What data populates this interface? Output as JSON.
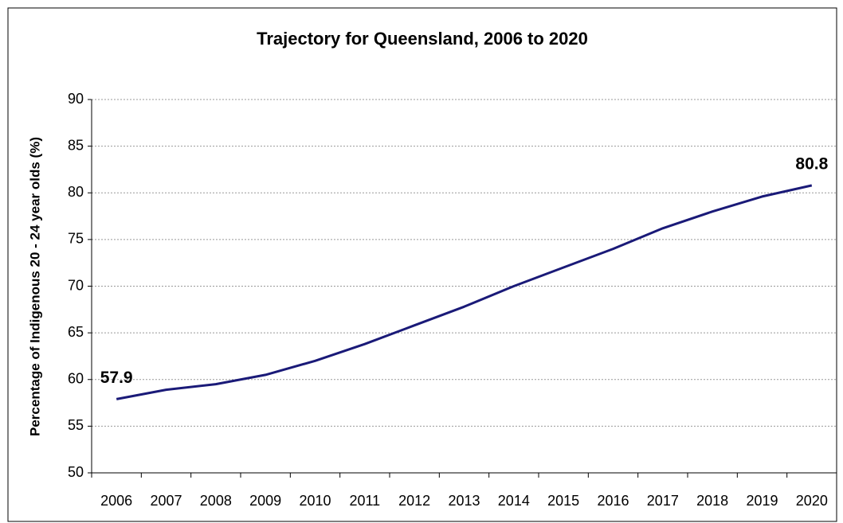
{
  "chart_data": {
    "type": "line",
    "title": "Trajectory for Queensland, 2006 to 2020",
    "y_label": "Percentage of Indigenous 20 - 24 year olds (%)",
    "categories": [
      "2006",
      "2007",
      "2008",
      "2009",
      "2010",
      "2011",
      "2012",
      "2013",
      "2014",
      "2015",
      "2016",
      "2017",
      "2018",
      "2019",
      "2020"
    ],
    "values": [
      57.9,
      58.9,
      59.5,
      60.5,
      62.0,
      63.8,
      65.8,
      67.8,
      70.0,
      72.0,
      74.0,
      76.2,
      78.0,
      79.6,
      80.8
    ],
    "value_labels": [
      "57.9",
      null,
      null,
      null,
      null,
      null,
      null,
      null,
      null,
      null,
      null,
      null,
      null,
      null,
      "80.8"
    ],
    "color": "#1a1a78",
    "ylim": [
      50,
      90
    ],
    "yticks": [
      50,
      55,
      60,
      65,
      70,
      75,
      80,
      85,
      90
    ],
    "grid": true
  }
}
